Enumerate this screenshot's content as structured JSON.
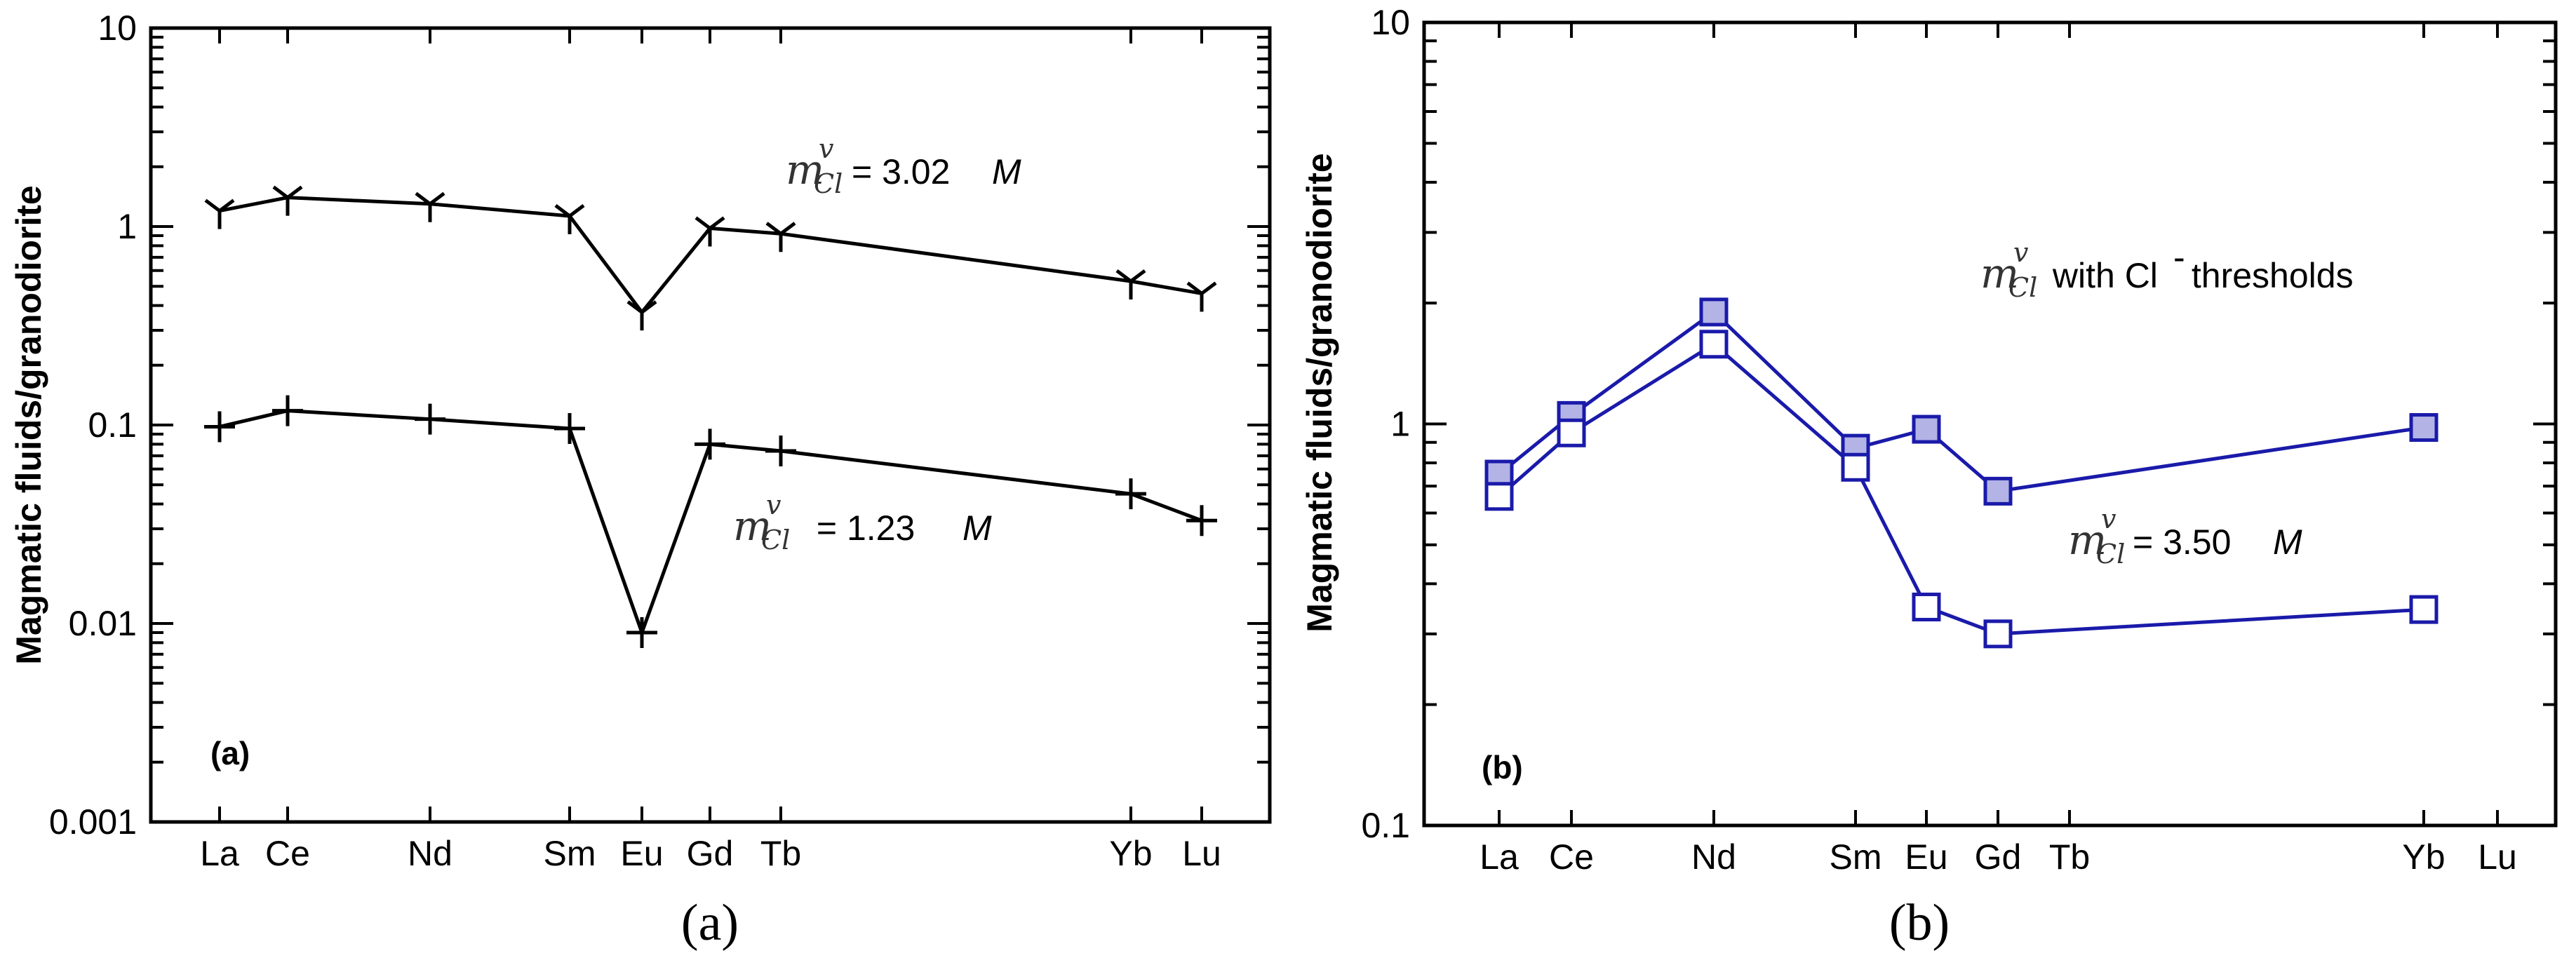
{
  "chart_data": [
    {
      "id": "a",
      "type": "line",
      "yscale": "log",
      "ylim": [
        0.001,
        10
      ],
      "ylabel": "Magmatic fluids/granodiorite",
      "panel_label": "(a)",
      "caption": "(a)",
      "y_ticks": [
        "10",
        "1",
        "0.1",
        "0.01",
        "0.001"
      ],
      "categories": [
        "La",
        "Ce",
        "Nd",
        "Sm",
        "Eu",
        "Gd",
        "Tb",
        "Yb",
        "Lu"
      ],
      "color": "#000000",
      "series": [
        {
          "name": "m_Cl^v = 3.02 M",
          "marker": "tri",
          "x": [
            "La",
            "Ce",
            "Nd",
            "Sm",
            "Eu",
            "Gd",
            "Tb",
            "Yb",
            "Lu"
          ],
          "values": [
            1.2,
            1.4,
            1.3,
            1.13,
            0.37,
            0.98,
            0.92,
            0.53,
            0.46
          ]
        },
        {
          "name": "m_Cl^v = 1.23 M",
          "marker": "plus",
          "x": [
            "La",
            "Ce",
            "Nd",
            "Sm",
            "Eu",
            "Gd",
            "Tb",
            "Yb",
            "Lu"
          ],
          "values": [
            0.098,
            0.118,
            0.107,
            0.096,
            0.009,
            0.08,
            0.074,
            0.045,
            0.033
          ]
        }
      ],
      "annotations": [
        {
          "sym": "m",
          "sup": "v",
          "sub": "Cl",
          "text": "= 3.02 ",
          "unit": "M"
        },
        {
          "sym": "m",
          "sup": "v",
          "sub": "Cl",
          "text": " = 1.23 ",
          "unit": "M"
        }
      ]
    },
    {
      "id": "b",
      "type": "line",
      "yscale": "log",
      "ylim": [
        0.1,
        10
      ],
      "ylabel": "Magmatic fluids/granodiorite",
      "panel_label": "(b)",
      "caption": "(b)",
      "y_ticks": [
        "10",
        "1",
        "0.1"
      ],
      "categories": [
        "La",
        "Ce",
        "Nd",
        "Sm",
        "Eu",
        "Gd",
        "Tb",
        "Yb",
        "Lu"
      ],
      "color": "#1a1aaa",
      "fill_color": "#b3b3e6",
      "series": [
        {
          "name": "m_Cl^v with Cl- thresholds",
          "marker": "square-filled",
          "x": [
            "La",
            "Ce",
            "Nd",
            "Sm",
            "Eu",
            "Gd",
            "Yb"
          ],
          "values": [
            0.75,
            1.05,
            1.9,
            0.87,
            0.97,
            0.68,
            0.98
          ]
        },
        {
          "name": "m_Cl^v = 3.50 M",
          "marker": "square-open",
          "x": [
            "La",
            "Ce",
            "Nd",
            "Sm",
            "Eu",
            "Gd",
            "Yb"
          ],
          "values": [
            0.66,
            0.95,
            1.58,
            0.78,
            0.35,
            0.3,
            0.345
          ]
        }
      ],
      "annotations": [
        {
          "sym": "m",
          "sup": "v",
          "sub": "Cl",
          "text": " with Cl",
          "text_sup": "-",
          "text2": " thresholds"
        },
        {
          "sym": "m",
          "sup": "v",
          "sub": "Cl",
          "text": "= 3.50 ",
          "unit": "M"
        }
      ]
    }
  ]
}
